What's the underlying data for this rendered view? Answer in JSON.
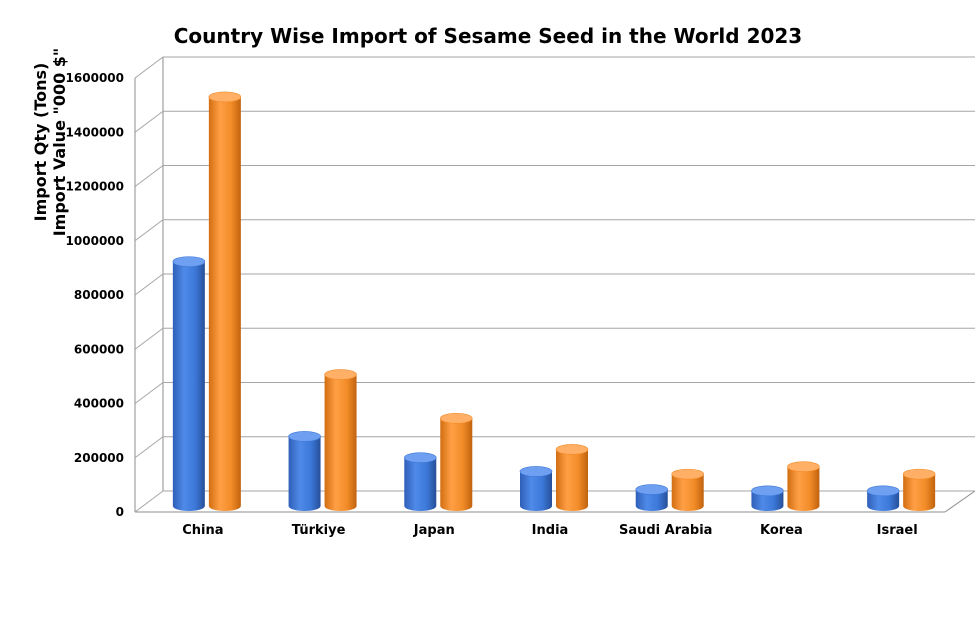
{
  "chart_data": {
    "type": "bar",
    "title": "Country Wise Import of Sesame Seed in the World 2023",
    "ylabel_lines": [
      "Import Qty (Tons)",
      "Import Value \"000 $\""
    ],
    "categories": [
      "China",
      "Türkiye",
      "Japan",
      "India",
      "Saudi Arabia",
      "Korea",
      "Israel"
    ],
    "series": [
      {
        "values": [
          920000,
          262000,
          182000,
          130000,
          62000,
          57000,
          57000
        ],
        "color": "#3c78d8"
      },
      {
        "values": [
          1540000,
          495000,
          330000,
          213000,
          120000,
          148000,
          120000
        ],
        "color": "#f28c28"
      }
    ],
    "ylim": [
      0,
      1600000
    ],
    "yticks": [
      0,
      200000,
      400000,
      600000,
      800000,
      1000000,
      1200000,
      1400000,
      1600000
    ],
    "ytick_labels": [
      "0",
      "200000",
      "400000",
      "600000",
      "800000",
      "1000000",
      "1200000",
      "1400000",
      "1600000"
    ],
    "grid": true,
    "style": "3d-cylinder"
  }
}
